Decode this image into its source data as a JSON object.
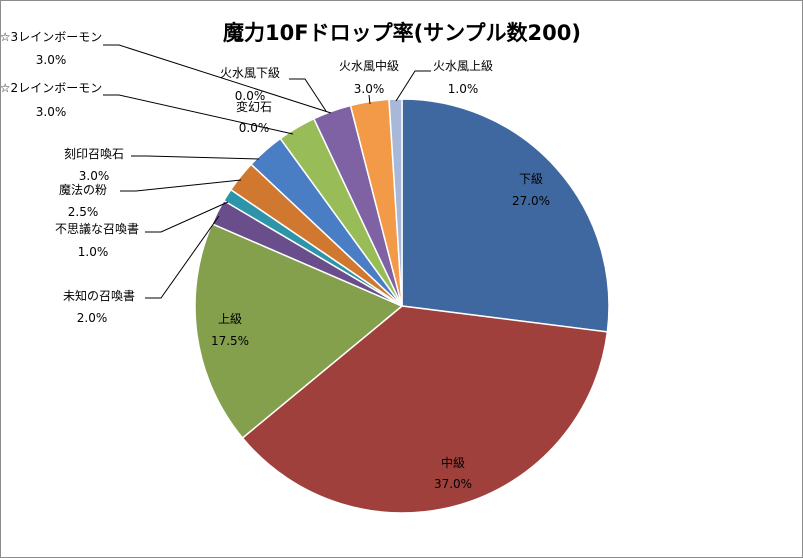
{
  "chart_data": {
    "type": "pie",
    "title": "魔力10Fドロップ率(サンプル数200)",
    "slices": [
      {
        "name": "下級",
        "value": 27.0,
        "label": "27.0%",
        "color": "#4068A0"
      },
      {
        "name": "中級",
        "value": 37.0,
        "label": "37.0%",
        "color": "#A0403C"
      },
      {
        "name": "上級",
        "value": 17.5,
        "label": "17.5%",
        "color": "#84A04C"
      },
      {
        "name": "未知の召喚書",
        "value": 2.0,
        "label": "2.0%",
        "color": "#6A4E8C"
      },
      {
        "name": "不思議な召喚書",
        "value": 1.0,
        "label": "1.0%",
        "color": "#2E94AA"
      },
      {
        "name": "魔法の粉",
        "value": 2.5,
        "label": "2.5%",
        "color": "#D07830"
      },
      {
        "name": "刻印召喚石",
        "value": 3.0,
        "label": "3.0%",
        "color": "#4A7EC4"
      },
      {
        "name": "☆2レインボーモン",
        "value": 3.0,
        "label": "3.0%",
        "color": "#98BC58"
      },
      {
        "name": "☆3レインボーモン",
        "value": 3.0,
        "label": "3.0%",
        "color": "#7E62A4"
      },
      {
        "name": "火水風中級",
        "value": 3.0,
        "label": "3.0%",
        "color": "#F29A48"
      },
      {
        "name": "火水風上級",
        "value": 1.0,
        "label": "1.0%",
        "color": "#A8B8D8"
      },
      {
        "name": "変幻石",
        "value": 0.0,
        "label": "0.0%",
        "color": "#3A5A8A"
      },
      {
        "name": "火水風下級",
        "value": 0.0,
        "label": "0.0%",
        "color": "#8A3A36"
      }
    ]
  }
}
